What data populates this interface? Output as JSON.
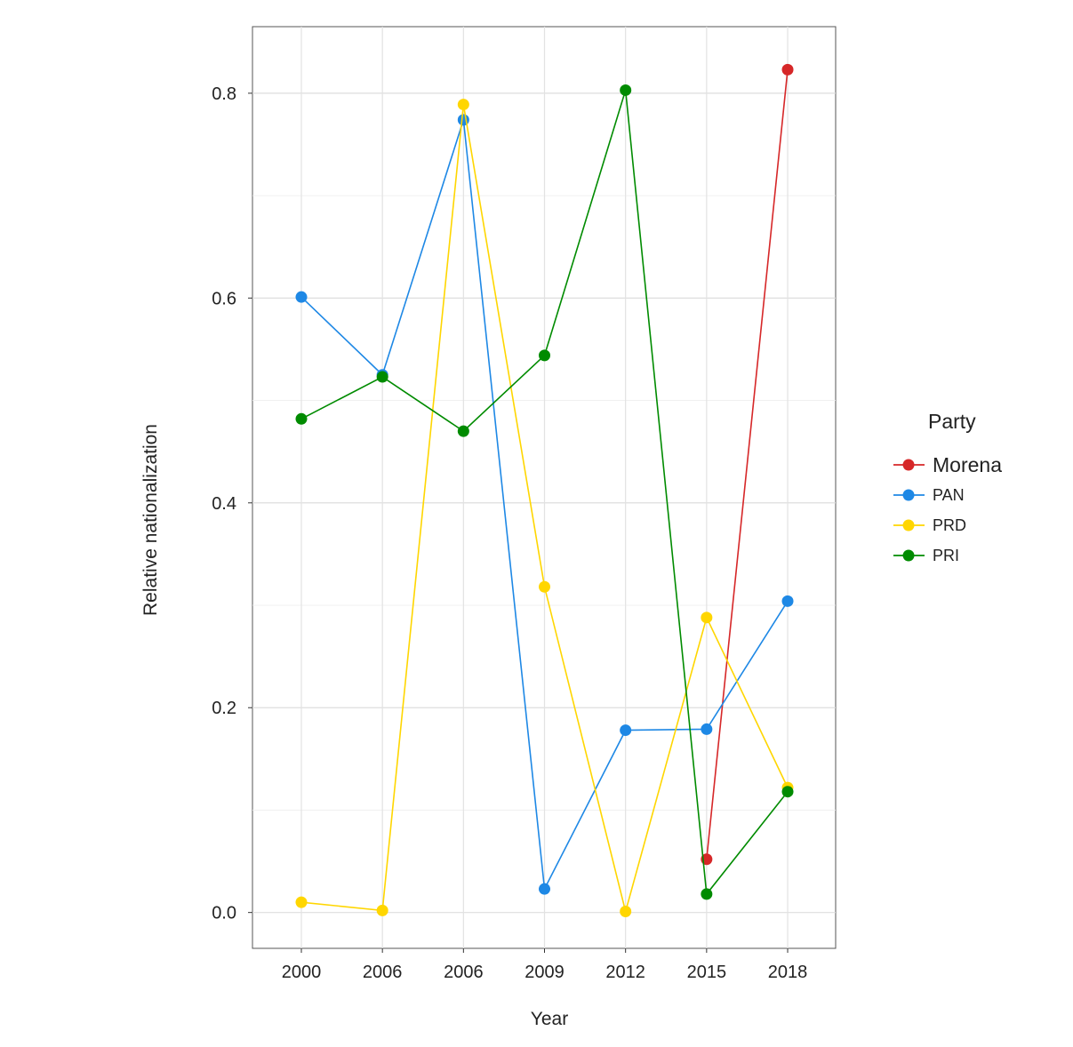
{
  "chart_data": {
    "type": "line",
    "categories": [
      "2000",
      "2006",
      "2006",
      "2009",
      "2012",
      "2015",
      "2018"
    ],
    "xlabel": "Year",
    "ylabel": "Relative nationalization",
    "ylim": [
      -0.035,
      0.865
    ],
    "yticks": [
      "0.0",
      "0.2",
      "0.4",
      "0.6",
      "0.8"
    ],
    "grid": true,
    "legend": {
      "title": "Party",
      "placement": "right"
    },
    "series": [
      {
        "name": "Morena",
        "color": "#d62728",
        "values": [
          null,
          null,
          null,
          null,
          null,
          0.052,
          0.823
        ]
      },
      {
        "name": "PAN",
        "color": "#1e88e5",
        "values": [
          0.601,
          0.525,
          0.774,
          0.023,
          0.178,
          0.179,
          0.304
        ]
      },
      {
        "name": "PRD",
        "color": "#ffd600",
        "values": [
          0.01,
          0.002,
          0.789,
          0.318,
          0.001,
          0.288,
          0.122
        ]
      },
      {
        "name": "PRI",
        "color": "#008b00",
        "values": [
          0.482,
          0.523,
          0.47,
          0.544,
          0.803,
          0.018,
          0.118
        ]
      }
    ]
  }
}
